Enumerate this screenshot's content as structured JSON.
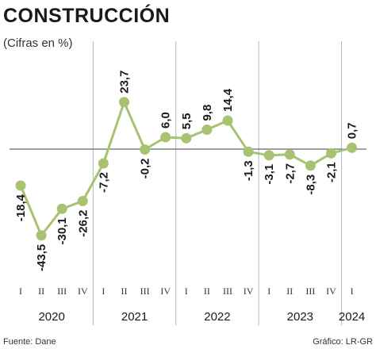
{
  "header": {
    "title": "CONSTRUCCIÓN",
    "subtitle": "(Cifras en %)"
  },
  "footer": {
    "source": "Fuente: Dane",
    "credit": "Gráfico: LR-GR"
  },
  "chart_data": {
    "type": "line",
    "ylabel": "Cifras en %",
    "colors": {
      "line": "#a7c270",
      "marker": "#a7c270",
      "grid": "#b5b5b5",
      "axis": "#666666"
    },
    "grid": true,
    "x": [
      "I",
      "II",
      "III",
      "IV",
      "I",
      "II",
      "III",
      "IV",
      "I",
      "II",
      "III",
      "IV",
      "I",
      "II",
      "III",
      "IV",
      "I"
    ],
    "years": [
      {
        "label": "2020",
        "start": 0,
        "end": 3
      },
      {
        "label": "2021",
        "start": 4,
        "end": 7
      },
      {
        "label": "2022",
        "start": 8,
        "end": 11
      },
      {
        "label": "2023",
        "start": 12,
        "end": 15
      },
      {
        "label": "2024",
        "start": 16,
        "end": 16
      }
    ],
    "values": [
      -18.4,
      -43.5,
      -30.1,
      -26.2,
      -7.2,
      23.7,
      -0.2,
      6.0,
      5.5,
      9.8,
      14.4,
      -1.3,
      -3.1,
      -2.7,
      -8.3,
      -2.1,
      0.7
    ],
    "value_labels": [
      "-18,4",
      "-43,5",
      "-30,1",
      "-26,2",
      "-7,2",
      "23,7",
      "-0,2",
      "6,0",
      "5,5",
      "9,8",
      "14,4",
      "-1,3",
      "-3,1",
      "-2,7",
      "-8,3",
      "-2,1",
      "0,7"
    ]
  }
}
